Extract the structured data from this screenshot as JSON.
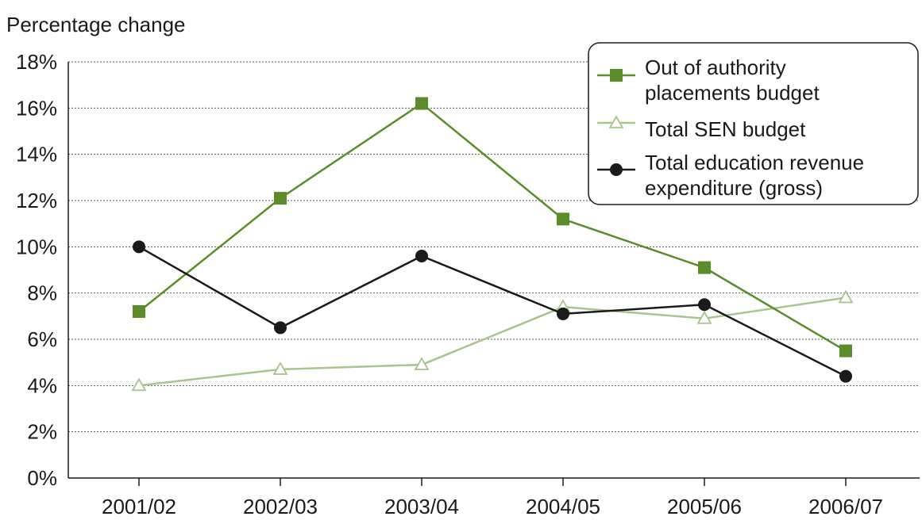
{
  "chart_data": {
    "type": "line",
    "ylabel": "Percentage change",
    "xlabel": "",
    "categories": [
      "2001/02",
      "2002/03",
      "2003/04",
      "2004/05",
      "2005/06",
      "2006/07"
    ],
    "ylim": [
      0,
      18
    ],
    "yticks": [
      0,
      2,
      4,
      6,
      8,
      10,
      12,
      14,
      16,
      18
    ],
    "ytick_labels": [
      "0%",
      "2%",
      "4%",
      "6%",
      "8%",
      "10%",
      "12%",
      "14%",
      "16%",
      "18%"
    ],
    "grid": "horizontal dotted",
    "legend_position": "top-right",
    "series": [
      {
        "name": "Out of authority placements budget",
        "legend_lines": [
          "Out of authority",
          "placements budget"
        ],
        "color": "#5b8c2a",
        "marker": "square",
        "values": [
          7.2,
          12.1,
          16.2,
          11.2,
          9.1,
          5.5
        ]
      },
      {
        "name": "Total SEN budget",
        "legend_lines": [
          "Total SEN budget"
        ],
        "color": "#a9c48c",
        "marker": "triangle-open",
        "values": [
          4.0,
          4.7,
          4.9,
          7.4,
          6.9,
          7.8
        ]
      },
      {
        "name": "Total education revenue expenditure (gross)",
        "legend_lines": [
          "Total education revenue",
          "expenditure (gross)"
        ],
        "color": "#1a1a1a",
        "marker": "circle",
        "values": [
          10.0,
          6.5,
          9.6,
          7.1,
          7.5,
          4.4
        ]
      }
    ]
  }
}
